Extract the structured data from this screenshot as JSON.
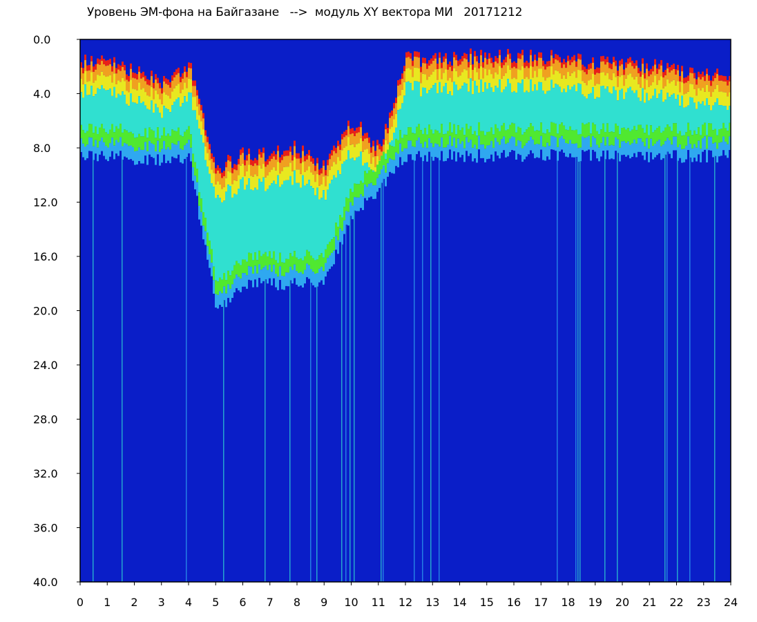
{
  "chart_data": {
    "type": "heatmap",
    "title": "Уровень ЭМ-фона на Байгазане   -->  модуль XY вектора МИ   20171212",
    "xlabel": "",
    "ylabel": "",
    "xlim": [
      0,
      24
    ],
    "ylim": [
      40.0,
      0.0
    ],
    "y_inverted": true,
    "x_ticks": [
      "0",
      "1",
      "2",
      "3",
      "4",
      "5",
      "6",
      "7",
      "8",
      "9",
      "10",
      "11",
      "12",
      "13",
      "14",
      "15",
      "16",
      "17",
      "18",
      "19",
      "20",
      "21",
      "22",
      "23",
      "24"
    ],
    "y_ticks": [
      "0.0",
      "4.0",
      "8.0",
      "12.0",
      "16.0",
      "20.0",
      "24.0",
      "28.0",
      "32.0",
      "36.0",
      "40.0"
    ],
    "colormap": [
      "#0a1ec8",
      "#1f4fe8",
      "#2fa8f0",
      "#30e0d0",
      "#50e830",
      "#e8e820",
      "#f0a020",
      "#e82018",
      "#ffffff"
    ],
    "background_color": "#0a1ec8",
    "band_upper_edge_by_hour": [
      {
        "hour": 0,
        "top": 1.5,
        "bottom": 8.5
      },
      {
        "hour": 1,
        "top": 1.6,
        "bottom": 8.6
      },
      {
        "hour": 2,
        "top": 2.5,
        "bottom": 8.8
      },
      {
        "hour": 3,
        "top": 3.0,
        "bottom": 9.0
      },
      {
        "hour": 4,
        "top": 1.8,
        "bottom": 8.8
      },
      {
        "hour": 5,
        "top": 9.5,
        "bottom": 20.0
      },
      {
        "hour": 6,
        "top": 8.5,
        "bottom": 18.0
      },
      {
        "hour": 7,
        "top": 8.5,
        "bottom": 18.0
      },
      {
        "hour": 8,
        "top": 8.0,
        "bottom": 18.0
      },
      {
        "hour": 9,
        "top": 9.5,
        "bottom": 18.0
      },
      {
        "hour": 10,
        "top": 6.0,
        "bottom": 13.0
      },
      {
        "hour": 11,
        "top": 8.0,
        "bottom": 11.0
      },
      {
        "hour": 12,
        "top": 1.5,
        "bottom": 8.6
      },
      {
        "hour": 13,
        "top": 1.4,
        "bottom": 8.6
      },
      {
        "hour": 14,
        "top": 1.3,
        "bottom": 8.6
      },
      {
        "hour": 15,
        "top": 1.2,
        "bottom": 8.6
      },
      {
        "hour": 16,
        "top": 1.2,
        "bottom": 8.6
      },
      {
        "hour": 17,
        "top": 1.3,
        "bottom": 8.6
      },
      {
        "hour": 18,
        "top": 1.5,
        "bottom": 8.6
      },
      {
        "hour": 19,
        "top": 1.8,
        "bottom": 8.6
      },
      {
        "hour": 20,
        "top": 1.8,
        "bottom": 8.6
      },
      {
        "hour": 21,
        "top": 2.0,
        "bottom": 8.6
      },
      {
        "hour": 22,
        "top": 2.2,
        "bottom": 8.6
      },
      {
        "hour": 23,
        "top": 2.5,
        "bottom": 8.6
      },
      {
        "hour": 24,
        "top": 2.5,
        "bottom": 8.6
      }
    ]
  }
}
